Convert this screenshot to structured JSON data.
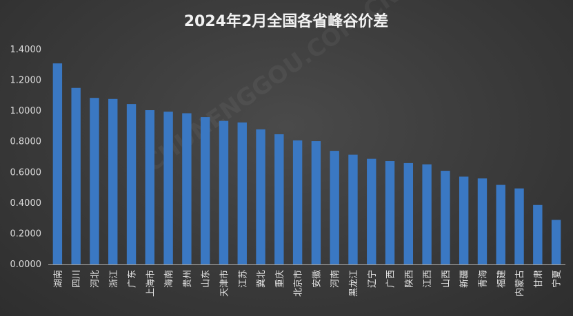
{
  "chart_data": {
    "type": "bar",
    "title": "2024年2月全国各省峰谷价差",
    "xlabel": "",
    "ylabel": "",
    "ylim": [
      0,
      1.4
    ],
    "yticks": [
      "0.0000",
      "0.2000",
      "0.4000",
      "0.6000",
      "0.8000",
      "1.0000",
      "1.2000",
      "1.4000"
    ],
    "grid": false,
    "legend": "none",
    "bar_color": "#3a78c3",
    "categories": [
      "湖南",
      "四川",
      "河北",
      "浙江",
      "广东",
      "上海市",
      "海南",
      "贵州",
      "山东",
      "天津市",
      "江苏",
      "冀北",
      "重庆",
      "北京市",
      "安徽",
      "河南",
      "黑龙江",
      "辽宁",
      "广西",
      "陕西",
      "江西",
      "山西",
      "新疆",
      "青海",
      "福建",
      "内蒙古",
      "甘肃",
      "宁夏"
    ],
    "values": [
      1.31,
      1.15,
      1.085,
      1.078,
      1.045,
      1.005,
      0.995,
      0.985,
      0.96,
      0.935,
      0.925,
      0.88,
      0.848,
      0.808,
      0.803,
      0.74,
      0.715,
      0.688,
      0.673,
      0.66,
      0.652,
      0.61,
      0.572,
      0.56,
      0.518,
      0.495,
      0.387,
      0.29
    ]
  },
  "watermark": "CHUNENGGOU.COM.CN"
}
